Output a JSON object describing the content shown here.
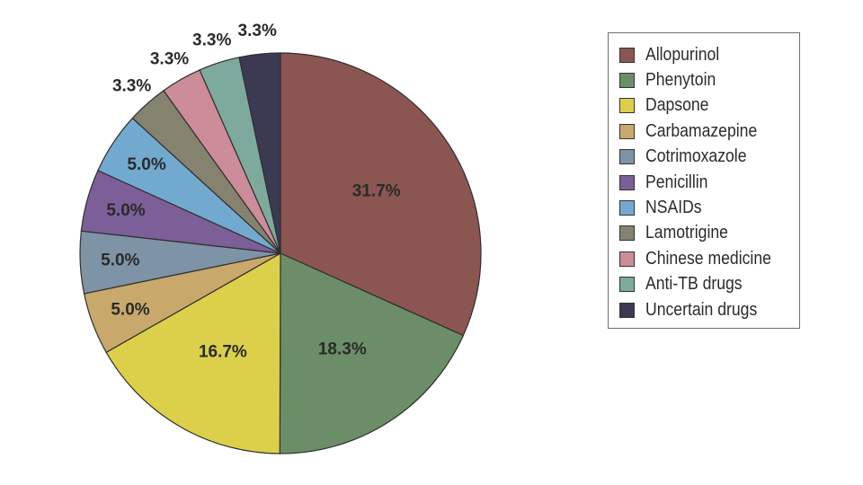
{
  "chart_data": {
    "type": "pie",
    "title": "",
    "start": "12 o'clock, clockwise",
    "legend_position": "right",
    "slices": [
      {
        "name": "Allopurinol",
        "value": 31.7,
        "label": "31.7%",
        "color": "#8B5552"
      },
      {
        "name": "Phenytoin",
        "value": 18.3,
        "label": "18.3%",
        "color": "#6B8E68"
      },
      {
        "name": "Dapsone",
        "value": 16.7,
        "label": "16.7%",
        "color": "#DCD04A"
      },
      {
        "name": "Carbamazepine",
        "value": 5.0,
        "label": "5.0%",
        "color": "#C9A86B"
      },
      {
        "name": "Cotrimoxazole",
        "value": 5.0,
        "label": "5.0%",
        "color": "#7E93A6"
      },
      {
        "name": "Penicillin",
        "value": 5.0,
        "label": "5.0%",
        "color": "#7C5E98"
      },
      {
        "name": "NSAIDs",
        "value": 5.0,
        "label": "5.0%",
        "color": "#72AACF"
      },
      {
        "name": "Lamotrigine",
        "value": 3.3,
        "label": "3.3%",
        "color": "#858270"
      },
      {
        "name": "Chinese medicine",
        "value": 3.3,
        "label": "3.3%",
        "color": "#CC8C98"
      },
      {
        "name": "Anti-TB drugs",
        "value": 3.3,
        "label": "3.3%",
        "color": "#7EAA9E"
      },
      {
        "name": "Uncertain drugs",
        "value": 3.3,
        "label": "3.3%",
        "color": "#3C3A52"
      }
    ]
  }
}
